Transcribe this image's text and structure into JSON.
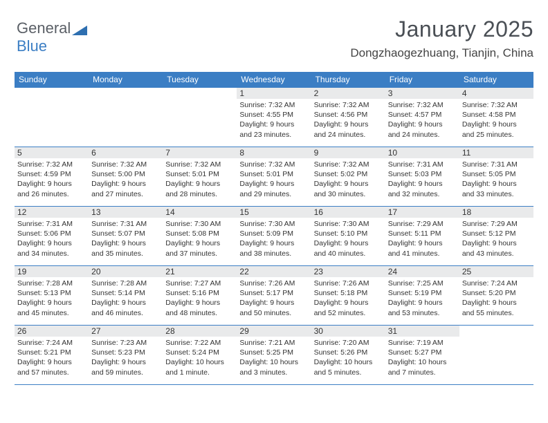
{
  "brand": {
    "part1": "General",
    "part2": "Blue"
  },
  "header": {
    "month_year": "January 2025",
    "location": "Dongzhaogezhuang, Tianjin, China"
  },
  "columns": [
    "Sunday",
    "Monday",
    "Tuesday",
    "Wednesday",
    "Thursday",
    "Friday",
    "Saturday"
  ],
  "colors": {
    "header_bg": "#3b7ec4",
    "header_text": "#ffffff",
    "daynum_bg": "#e9eaeb",
    "border": "#3b7ec4",
    "page_bg": "#ffffff",
    "text": "#3a3a3a"
  },
  "weeks": [
    [
      null,
      null,
      null,
      {
        "n": "1",
        "sr": "7:32 AM",
        "ss": "4:55 PM",
        "dl": "9 hours and 23 minutes."
      },
      {
        "n": "2",
        "sr": "7:32 AM",
        "ss": "4:56 PM",
        "dl": "9 hours and 24 minutes."
      },
      {
        "n": "3",
        "sr": "7:32 AM",
        "ss": "4:57 PM",
        "dl": "9 hours and 24 minutes."
      },
      {
        "n": "4",
        "sr": "7:32 AM",
        "ss": "4:58 PM",
        "dl": "9 hours and 25 minutes."
      }
    ],
    [
      {
        "n": "5",
        "sr": "7:32 AM",
        "ss": "4:59 PM",
        "dl": "9 hours and 26 minutes."
      },
      {
        "n": "6",
        "sr": "7:32 AM",
        "ss": "5:00 PM",
        "dl": "9 hours and 27 minutes."
      },
      {
        "n": "7",
        "sr": "7:32 AM",
        "ss": "5:01 PM",
        "dl": "9 hours and 28 minutes."
      },
      {
        "n": "8",
        "sr": "7:32 AM",
        "ss": "5:01 PM",
        "dl": "9 hours and 29 minutes."
      },
      {
        "n": "9",
        "sr": "7:32 AM",
        "ss": "5:02 PM",
        "dl": "9 hours and 30 minutes."
      },
      {
        "n": "10",
        "sr": "7:31 AM",
        "ss": "5:03 PM",
        "dl": "9 hours and 32 minutes."
      },
      {
        "n": "11",
        "sr": "7:31 AM",
        "ss": "5:05 PM",
        "dl": "9 hours and 33 minutes."
      }
    ],
    [
      {
        "n": "12",
        "sr": "7:31 AM",
        "ss": "5:06 PM",
        "dl": "9 hours and 34 minutes."
      },
      {
        "n": "13",
        "sr": "7:31 AM",
        "ss": "5:07 PM",
        "dl": "9 hours and 35 minutes."
      },
      {
        "n": "14",
        "sr": "7:30 AM",
        "ss": "5:08 PM",
        "dl": "9 hours and 37 minutes."
      },
      {
        "n": "15",
        "sr": "7:30 AM",
        "ss": "5:09 PM",
        "dl": "9 hours and 38 minutes."
      },
      {
        "n": "16",
        "sr": "7:30 AM",
        "ss": "5:10 PM",
        "dl": "9 hours and 40 minutes."
      },
      {
        "n": "17",
        "sr": "7:29 AM",
        "ss": "5:11 PM",
        "dl": "9 hours and 41 minutes."
      },
      {
        "n": "18",
        "sr": "7:29 AM",
        "ss": "5:12 PM",
        "dl": "9 hours and 43 minutes."
      }
    ],
    [
      {
        "n": "19",
        "sr": "7:28 AM",
        "ss": "5:13 PM",
        "dl": "9 hours and 45 minutes."
      },
      {
        "n": "20",
        "sr": "7:28 AM",
        "ss": "5:14 PM",
        "dl": "9 hours and 46 minutes."
      },
      {
        "n": "21",
        "sr": "7:27 AM",
        "ss": "5:16 PM",
        "dl": "9 hours and 48 minutes."
      },
      {
        "n": "22",
        "sr": "7:26 AM",
        "ss": "5:17 PM",
        "dl": "9 hours and 50 minutes."
      },
      {
        "n": "23",
        "sr": "7:26 AM",
        "ss": "5:18 PM",
        "dl": "9 hours and 52 minutes."
      },
      {
        "n": "24",
        "sr": "7:25 AM",
        "ss": "5:19 PM",
        "dl": "9 hours and 53 minutes."
      },
      {
        "n": "25",
        "sr": "7:24 AM",
        "ss": "5:20 PM",
        "dl": "9 hours and 55 minutes."
      }
    ],
    [
      {
        "n": "26",
        "sr": "7:24 AM",
        "ss": "5:21 PM",
        "dl": "9 hours and 57 minutes."
      },
      {
        "n": "27",
        "sr": "7:23 AM",
        "ss": "5:23 PM",
        "dl": "9 hours and 59 minutes."
      },
      {
        "n": "28",
        "sr": "7:22 AM",
        "ss": "5:24 PM",
        "dl": "10 hours and 1 minute."
      },
      {
        "n": "29",
        "sr": "7:21 AM",
        "ss": "5:25 PM",
        "dl": "10 hours and 3 minutes."
      },
      {
        "n": "30",
        "sr": "7:20 AM",
        "ss": "5:26 PM",
        "dl": "10 hours and 5 minutes."
      },
      {
        "n": "31",
        "sr": "7:19 AM",
        "ss": "5:27 PM",
        "dl": "10 hours and 7 minutes."
      },
      null
    ]
  ],
  "labels": {
    "sunrise": "Sunrise:",
    "sunset": "Sunset:",
    "daylight": "Daylight:"
  }
}
